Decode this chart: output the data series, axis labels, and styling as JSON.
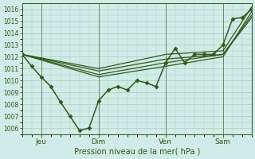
{
  "xlabel": "Pression niveau de la mer( hPa )",
  "background_color": "#d0ece8",
  "plot_bg_color": "#d0ece8",
  "grid_color": "#aaccbb",
  "line_color": "#2d5a1b",
  "ylim": [
    1005.5,
    1016.5
  ],
  "yticks": [
    1006,
    1007,
    1008,
    1009,
    1010,
    1011,
    1012,
    1013,
    1014,
    1015,
    1016
  ],
  "xlim": [
    0,
    96
  ],
  "day_ticks": [
    8,
    32,
    60,
    84
  ],
  "day_labels": [
    "Jeu",
    "Dim",
    "Ven",
    "Sam"
  ],
  "vline_positions": [
    8,
    32,
    60,
    84
  ],
  "series_main": {
    "x": [
      0,
      4,
      8,
      12,
      16,
      20,
      24,
      28,
      32,
      36,
      40,
      44,
      48,
      52,
      56,
      60,
      64,
      68,
      72,
      76,
      80,
      84,
      88,
      92,
      96
    ],
    "y": [
      1012.2,
      1011.2,
      1010.3,
      1009.5,
      1008.2,
      1007.0,
      1005.8,
      1006.0,
      1008.3,
      1009.2,
      1009.5,
      1009.2,
      1010.0,
      1009.8,
      1009.5,
      1011.5,
      1012.7,
      1011.5,
      1012.2,
      1012.2,
      1012.2,
      1013.0,
      1015.2,
      1015.3,
      1016.0
    ],
    "marker": "D",
    "markersize": 2.5,
    "linewidth": 1.1
  },
  "series_smooth": [
    {
      "x": [
        0,
        32,
        60,
        84,
        96
      ],
      "y": [
        1012.2,
        1010.8,
        1011.8,
        1012.2,
        1015.3
      ],
      "linewidth": 0.9
    },
    {
      "x": [
        0,
        32,
        60,
        84,
        96
      ],
      "y": [
        1012.2,
        1010.5,
        1011.5,
        1012.2,
        1015.5
      ],
      "linewidth": 0.9
    },
    {
      "x": [
        0,
        32,
        60,
        84,
        96
      ],
      "y": [
        1012.2,
        1010.3,
        1011.2,
        1012.0,
        1015.8
      ],
      "linewidth": 0.9
    },
    {
      "x": [
        0,
        32,
        60,
        84,
        96
      ],
      "y": [
        1012.2,
        1011.0,
        1012.2,
        1012.5,
        1016.2
      ],
      "linewidth": 0.9
    }
  ]
}
